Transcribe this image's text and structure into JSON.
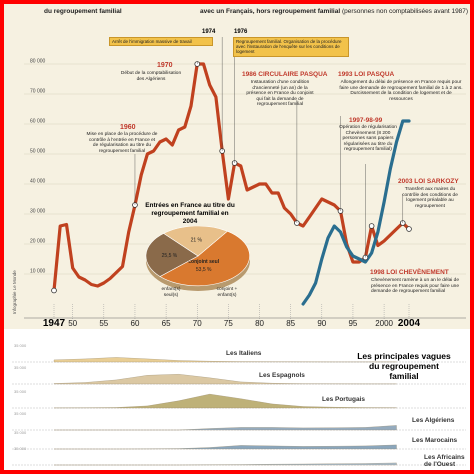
{
  "header": {
    "left": "du regroupement familial",
    "right_bold": "avec un Français, hors regroupement familial",
    "right_normal": "(personnes non comptabilisées avant 1987)"
  },
  "credit": "Infographie Le Monde",
  "colors": {
    "main_series": "#c0411f",
    "second_series": "#2a6e8f",
    "highlight_box": "#f2c24a",
    "frame": "#ff0000"
  },
  "events": {
    "y1974": {
      "year": "1974",
      "text": "Arrêt de l'immigration massive de travail"
    },
    "y1976": {
      "year": "1976",
      "text": "Regroupement familial. Organisation de la procédure avec l'instauration de l'enquête sur les conditions de logement"
    },
    "y1970": {
      "year": "1970",
      "text": "Début de la comptabilisation des Algériens"
    },
    "y1960": {
      "year": "1960",
      "text": "Mise en place de la procédure de contrôle à l'entrée en France et de régularisation au titre du regroupement familial"
    },
    "pasqua86": {
      "year": "1986 CIRCULAIRE PASQUA",
      "text": "Instauration d'une condition d'ancienneté (un an) de la présence en France du conjoint qui fait la demande de regroupement familial"
    },
    "pasqua93": {
      "year": "1993 LOI PASQUA",
      "text": "Allongement du délai de présence en France requis pour faire une demande de regroupement familial de 1 à 2 ans. Durcissement de la condition de logement et de ressources"
    },
    "y1997": {
      "year": "1997-98-99",
      "text": "Opération de régularisation Chevènement (8 200 personnes sans papiers régularisées au titre du regroupement familial)"
    },
    "sarkozy": {
      "year": "2003 LOI SARKOZY",
      "text": "Transfert aux maires du contrôle des conditions de logement préalable au regroupement"
    },
    "chevenement": {
      "year": "1998 LOI CHEVÈNEMENT",
      "text": "Chevènement ramène à un an le délai de présence en France requis pour faire une demande de regroupement familial"
    }
  },
  "inset": {
    "title": "Entrées en France au titre du regroupement familial en 2004",
    "label_conjoint": "conjoint seul",
    "label_enfants": "enfant(s) seul(s)",
    "label_both": "conjoint + enfant(s)"
  },
  "waves": {
    "title": "Les principales vagues du regroupement familial",
    "bands": [
      {
        "name": "Les Italiens",
        "axis_label": "35 000"
      },
      {
        "name": "Les Espagnols",
        "axis_label": "35 000"
      },
      {
        "name": "Les Portugais",
        "axis_label": "35 000"
      },
      {
        "name": "Les Algériens",
        "axis_label": "35 000"
      },
      {
        "name": "Les Marocains",
        "axis_label": "35 000"
      },
      {
        "name": "Les Africains de l'Ouest",
        "axis_label": "35 000"
      }
    ]
  },
  "chart_data": [
    {
      "type": "line",
      "ylim": [
        0,
        80000
      ],
      "xlim": [
        1946,
        2005
      ],
      "y_ticks": [
        10000,
        20000,
        30000,
        40000,
        50000,
        60000,
        70000,
        80000
      ],
      "y_tick_labels": [
        "10 000",
        "20 000",
        "30 000",
        "40 000",
        "50 000",
        "60 000",
        "70 000",
        "80 000"
      ],
      "x_ticks": [
        1947,
        1950,
        1955,
        1960,
        1965,
        1970,
        1975,
        1980,
        1985,
        1990,
        1995,
        2000,
        2004
      ],
      "x_tick_labels": [
        "1947",
        "50",
        "55",
        "60",
        "65",
        "70",
        "75",
        "80",
        "85",
        "90",
        "95",
        "2000",
        "2004"
      ],
      "series": [
        {
          "x": [
            1947,
            1948,
            1949,
            1950,
            1951,
            1952,
            1953,
            1954,
            1955,
            1956,
            1957,
            1958,
            1959,
            1960,
            1961,
            1962,
            1963,
            1964,
            1965,
            1966,
            1967,
            1968,
            1969,
            1970,
            1971,
            1972,
            1973,
            1974,
            1975,
            1976,
            1977,
            1978,
            1979,
            1980,
            1981,
            1982,
            1983,
            1984,
            1985,
            1986,
            1987,
            1988,
            1989,
            1990,
            1991,
            1992,
            1993,
            1994,
            1995,
            1996,
            1997,
            1998,
            1999,
            2000,
            2001,
            2002,
            2003,
            2004
          ],
          "values": [
            4500,
            26000,
            26500,
            12000,
            9000,
            8000,
            6500,
            6000,
            7000,
            8500,
            10500,
            12500,
            24000,
            33000,
            43000,
            50000,
            51000,
            54000,
            55000,
            53000,
            58000,
            59000,
            66000,
            80000,
            80000,
            73000,
            69000,
            51000,
            35000,
            47000,
            46000,
            38000,
            39000,
            40000,
            40000,
            37000,
            37000,
            32000,
            30000,
            27000,
            26000,
            29000,
            32000,
            35000,
            34000,
            33000,
            31000,
            20000,
            14000,
            14000,
            15500,
            26000,
            19500,
            21000,
            23000,
            25000,
            27000,
            25000
          ]
        },
        {
          "x": [
            1987,
            1988,
            1989,
            1990,
            1991,
            1992,
            1993,
            1994,
            1995,
            1996,
            1997,
            1998,
            1999,
            2000,
            2001,
            2002,
            2003,
            2004
          ],
          "values": [
            0,
            3000,
            7000,
            15000,
            22000,
            26000,
            24000,
            19000,
            16000,
            15000,
            14000,
            17000,
            24000,
            34000,
            45000,
            54000,
            61000,
            61000
          ]
        }
      ]
    },
    {
      "type": "pie",
      "categories": [
        "conjoint seul",
        "25,5 %",
        "21 %"
      ],
      "values": [
        53.5,
        25.5,
        21
      ],
      "value_labels": [
        "53,5 %",
        "25,5 %",
        "21 %"
      ]
    },
    {
      "type": "area",
      "xlim": [
        1946,
        2005
      ],
      "ylim": [
        0,
        35000
      ],
      "series": [
        {
          "name": "Les Italiens",
          "x": [
            1947,
            1952,
            1957,
            1962,
            1967,
            1972,
            1977,
            1982,
            1987,
            1992,
            1997,
            2002
          ],
          "values": [
            4000,
            6000,
            9000,
            6000,
            3000,
            1500,
            800,
            500,
            300,
            200,
            100,
            100
          ]
        },
        {
          "name": "Les Espagnols",
          "x": [
            1947,
            1952,
            1957,
            1962,
            1967,
            1972,
            1977,
            1982,
            1987,
            1992,
            1997,
            2002
          ],
          "values": [
            1000,
            3000,
            8000,
            17000,
            19000,
            12000,
            4000,
            1500,
            500,
            300,
            200,
            100
          ]
        },
        {
          "name": "Les Portugais",
          "x": [
            1947,
            1952,
            1957,
            1962,
            1967,
            1972,
            1977,
            1982,
            1987,
            1992,
            1997,
            2002
          ],
          "values": [
            100,
            300,
            1000,
            4000,
            14000,
            27000,
            18000,
            8000,
            3000,
            1500,
            800,
            500
          ]
        },
        {
          "name": "Les Algériens",
          "x": [
            1947,
            1952,
            1957,
            1962,
            1967,
            1972,
            1977,
            1982,
            1987,
            1992,
            1997,
            2002
          ],
          "values": [
            0,
            0,
            0,
            0,
            0,
            3000,
            5000,
            5000,
            4000,
            4500,
            5000,
            9000
          ]
        },
        {
          "name": "Les Marocains",
          "x": [
            1947,
            1952,
            1957,
            1962,
            1967,
            1972,
            1977,
            1982,
            1987,
            1992,
            1997,
            2002
          ],
          "values": [
            0,
            0,
            0,
            200,
            800,
            3000,
            7000,
            6000,
            5000,
            5500,
            6000,
            8000
          ]
        },
        {
          "name": "Les Africains de l'Ouest",
          "x": [
            1947,
            1952,
            1957,
            1962,
            1967,
            1972,
            1977,
            1982,
            1987,
            1992,
            1997,
            2002
          ],
          "values": [
            0,
            0,
            0,
            0,
            0,
            300,
            800,
            1500,
            2000,
            2500,
            3000,
            4000
          ]
        }
      ]
    }
  ]
}
